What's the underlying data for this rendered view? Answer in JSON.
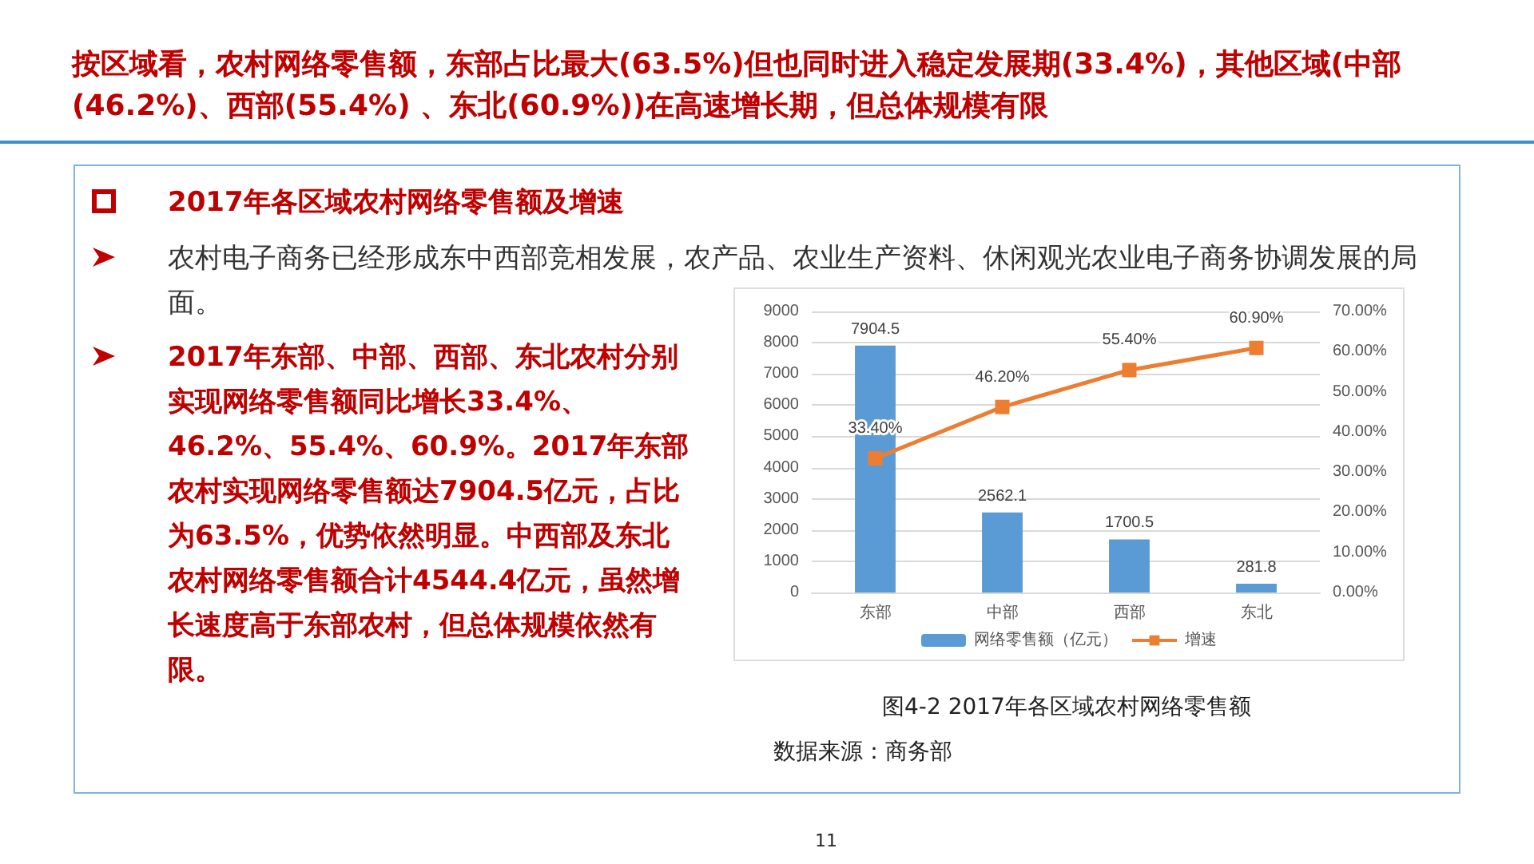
{
  "chart_data": {
    "type": "bar",
    "title": "按区域看，农村网络零售额，东部占比最大(63.5%)但也同时进入稳定发展期(33.4%)，其他区域(中部(46.2%)、西部(55.4%) 、东北(60.9%))在高速增长期，但总体规模有限",
    "subtitle": "2017年各区域农村网络零售额及增速",
    "annotations": [
      "农村电子商务已经形成东中西部竞相发展，农产品、农业生产资料、休闲观光农业电子商务协调发展的局面。",
      "2017年东部、中部、西部、东北农村分别实现网络零售额同比增长33.4%、46.2%、55.4%、60.9%。2017年东部农村实现网络零售额达7904.5亿元，占比为63.5%，优势依然明显。中西部及东北农村网络零售额合计4544.4亿元，虽然增长速度高于东部农村，但总体规模依然有限。",
      "图4-2 2017年各区域农村网络零售额",
      "数据来源：商务部",
      "11"
    ],
    "categories": [
      "东部",
      "中部",
      "西部",
      "东北"
    ],
    "series": [
      {
        "name": "网络零售额（亿元）",
        "color": "#5b9bd5",
        "values": [
          7904.5,
          2562.1,
          1700.5,
          281.8
        ],
        "value_labels": [
          "7904.5",
          "2562.1",
          "1700.5",
          "281.8"
        ]
      },
      {
        "name": "增速",
        "type": "line",
        "axis": "y2",
        "color": "#ed7d31",
        "marker": "square",
        "values": [
          33.4,
          46.2,
          55.4,
          60.9
        ],
        "value_labels": [
          "33.40%",
          "46.20%",
          "55.40%",
          "60.90%"
        ]
      }
    ],
    "ylim": [
      0,
      9000
    ],
    "yticks": [
      0,
      1000,
      2000,
      3000,
      4000,
      5000,
      6000,
      7000,
      8000,
      9000
    ],
    "y2lim": [
      0,
      70
    ],
    "y2ticks": [
      {
        "value": 0,
        "label": "0.00%"
      },
      {
        "value": 10,
        "label": "10.00%"
      },
      {
        "value": 20,
        "label": "20.00%"
      },
      {
        "value": 30,
        "label": "30.00%"
      },
      {
        "value": 40,
        "label": "40.00%"
      },
      {
        "value": 50,
        "label": "50.00%"
      },
      {
        "value": 60,
        "label": "60.00%"
      },
      {
        "value": 70,
        "label": "70.00%"
      }
    ],
    "grid": "y",
    "legend": "bottom"
  }
}
